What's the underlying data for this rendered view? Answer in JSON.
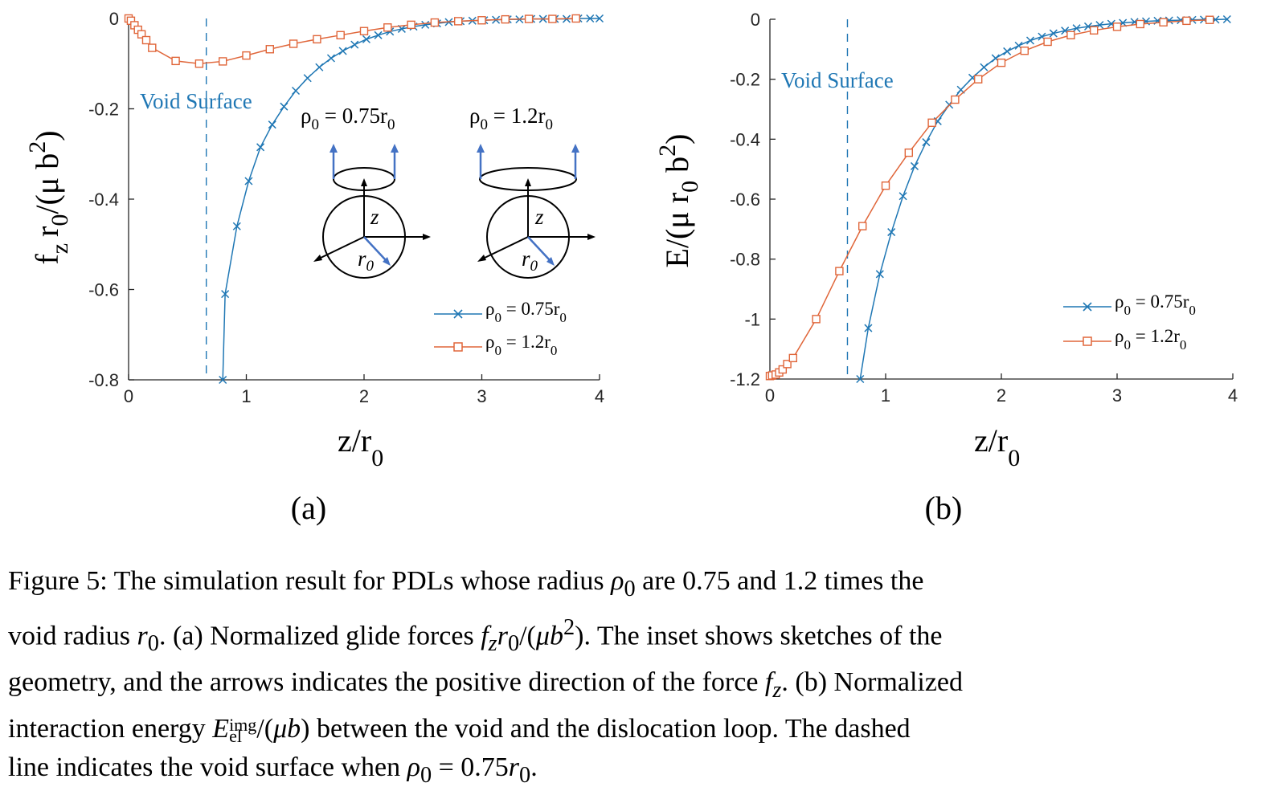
{
  "chart_data": [
    {
      "type": "line",
      "panel_label": "(a)",
      "ylabel": {
        "a": "f",
        "b": "r",
        "c": "/(μ b",
        "d": ")",
        "sub1": "z",
        "sub2": "0",
        "sup": "2"
      },
      "xlabel": {
        "main": "z/r",
        "sub": "0"
      },
      "xlim": [
        0,
        4
      ],
      "ylim": [
        -0.8,
        0
      ],
      "xticks": [
        0,
        1,
        2,
        3,
        4
      ],
      "xtick_labels": [
        "0",
        "1",
        "2",
        "3",
        "4"
      ],
      "yticks": [
        0,
        -0.2,
        -0.4,
        -0.6,
        -0.8
      ],
      "ytick_labels": [
        "0",
        "-0.2",
        "-0.4",
        "-0.6",
        "-0.8"
      ],
      "void_surface": {
        "x": 0.66,
        "label": "Void Surface"
      },
      "legend": "lower-right",
      "series": [
        {
          "name": {
            "greek": "ρ",
            "sub": "0",
            "rest": " = 0.75r",
            "sub2": "0"
          },
          "color": "#1f77b4",
          "marker": "x",
          "x": [
            0.8,
            0.82,
            0.92,
            1.02,
            1.12,
            1.22,
            1.32,
            1.42,
            1.52,
            1.62,
            1.72,
            1.82,
            1.92,
            2.02,
            2.12,
            2.22,
            2.32,
            2.42,
            2.52,
            2.62,
            2.72,
            2.82,
            2.92,
            3.02,
            3.12,
            3.22,
            3.32,
            3.42,
            3.52,
            3.62,
            3.72,
            3.82,
            3.92,
            4.0
          ],
          "y": [
            -0.8,
            -0.61,
            -0.46,
            -0.36,
            -0.285,
            -0.235,
            -0.195,
            -0.16,
            -0.132,
            -0.108,
            -0.088,
            -0.072,
            -0.058,
            -0.046,
            -0.037,
            -0.029,
            -0.023,
            -0.018,
            -0.014,
            -0.011,
            -0.008,
            -0.006,
            -0.005,
            -0.004,
            -0.003,
            -0.002,
            -0.002,
            -0.001,
            -0.001,
            -0.001,
            -0.001,
            0,
            0,
            0
          ]
        },
        {
          "name": {
            "greek": "ρ",
            "sub": "0",
            "rest": " = 1.2r",
            "sub2": "0"
          },
          "color": "#e0663a",
          "marker": "square",
          "x": [
            0,
            0.02,
            0.05,
            0.08,
            0.11,
            0.15,
            0.2,
            0.4,
            0.6,
            0.8,
            1.0,
            1.2,
            1.4,
            1.6,
            1.8,
            2.0,
            2.2,
            2.4,
            2.6,
            2.8,
            3.0,
            3.2,
            3.4,
            3.6,
            3.8
          ],
          "y": [
            0,
            -0.005,
            -0.015,
            -0.025,
            -0.035,
            -0.048,
            -0.065,
            -0.094,
            -0.1,
            -0.095,
            -0.082,
            -0.068,
            -0.056,
            -0.046,
            -0.037,
            -0.028,
            -0.02,
            -0.014,
            -0.009,
            -0.006,
            -0.004,
            -0.002,
            -0.001,
            -0.001,
            0
          ]
        }
      ],
      "inset": {
        "left_title": {
          "greek": "ρ",
          "sub": "0",
          "rest": " = 0.75r",
          "sub2": "0"
        },
        "right_title": {
          "greek": "ρ",
          "sub": "0",
          "rest": " = 1.2r",
          "sub2": "0"
        },
        "z_label": "z",
        "r_label": {
          "main": "r",
          "sub": "0"
        },
        "arrow_color": "#4472c4"
      }
    },
    {
      "type": "line",
      "panel_label": "(b)",
      "ylabel": {
        "a": "E/(μ r",
        "b": " b",
        "c": ")",
        "sub1": "0",
        "sup": "2"
      },
      "xlabel": {
        "main": "z/r",
        "sub": "0"
      },
      "xlim": [
        0,
        4
      ],
      "ylim": [
        -1.2,
        0
      ],
      "xticks": [
        0,
        1,
        2,
        3,
        4
      ],
      "xtick_labels": [
        "0",
        "1",
        "2",
        "3",
        "4"
      ],
      "yticks": [
        0,
        -0.2,
        -0.4,
        -0.6,
        -0.8,
        -1,
        -1.2
      ],
      "ytick_labels": [
        "0",
        "-0.2",
        "-0.4",
        "-0.6",
        "-0.8",
        "-1",
        "-1.2"
      ],
      "void_surface": {
        "x": 0.67,
        "label": "Void Surface"
      },
      "legend": "right",
      "series": [
        {
          "name": {
            "greek": "ρ",
            "sub": "0",
            "rest": " = 0.75r",
            "sub2": "0"
          },
          "color": "#1f77b4",
          "marker": "x",
          "x": [
            0.78,
            0.85,
            0.95,
            1.05,
            1.15,
            1.25,
            1.35,
            1.45,
            1.55,
            1.65,
            1.75,
            1.85,
            1.95,
            2.05,
            2.15,
            2.25,
            2.35,
            2.45,
            2.55,
            2.65,
            2.75,
            2.85,
            2.95,
            3.05,
            3.15,
            3.25,
            3.35,
            3.45,
            3.55,
            3.65,
            3.75,
            3.85,
            3.95
          ],
          "y": [
            -1.2,
            -1.03,
            -0.85,
            -0.71,
            -0.59,
            -0.49,
            -0.41,
            -0.34,
            -0.285,
            -0.235,
            -0.195,
            -0.16,
            -0.13,
            -0.107,
            -0.088,
            -0.071,
            -0.058,
            -0.047,
            -0.038,
            -0.03,
            -0.024,
            -0.019,
            -0.015,
            -0.012,
            -0.009,
            -0.007,
            -0.005,
            -0.004,
            -0.003,
            -0.002,
            -0.001,
            -0.001,
            0
          ]
        },
        {
          "name": {
            "greek": "ρ",
            "sub": "0",
            "rest": " = 1.2r",
            "sub2": "0"
          },
          "color": "#e0663a",
          "marker": "square",
          "x": [
            0,
            0.02,
            0.05,
            0.08,
            0.11,
            0.15,
            0.2,
            0.4,
            0.6,
            0.8,
            1.0,
            1.2,
            1.4,
            1.6,
            1.8,
            2.0,
            2.2,
            2.4,
            2.6,
            2.8,
            3.0,
            3.2,
            3.4,
            3.6,
            3.8
          ],
          "y": [
            -1.19,
            -1.188,
            -1.185,
            -1.178,
            -1.168,
            -1.15,
            -1.13,
            -1.0,
            -0.84,
            -0.69,
            -0.555,
            -0.445,
            -0.345,
            -0.268,
            -0.2,
            -0.145,
            -0.105,
            -0.075,
            -0.053,
            -0.037,
            -0.025,
            -0.016,
            -0.01,
            -0.005,
            -0.002
          ]
        }
      ]
    }
  ],
  "caption": {
    "l1a": "Figure 5:  The simulation result for PDLs whose radius ",
    "rho": "ρ",
    "sub0": "0",
    "l1b": " are 0.75 and 1.2 times the",
    "l2a": "void radius ",
    "r": "r",
    "l2b": ".  (a) Normalized glide forces ",
    "f": "f",
    "z": "z",
    "l2c": "/(",
    "mu": "μb",
    "two": "2",
    "l2d": ").  The inset shows sketches of the",
    "l3a": "geometry, and the arrows indicates the positive direction of the force ",
    "l3b": ".  (b) Normalized",
    "l4a": "interaction energy ",
    "E": "E",
    "img": "img",
    "el": "el",
    "l4b": ") between the void and the dislocation loop.  The dashed",
    "l5a": "line indicates the void surface when ",
    "l5b": " = 0.75",
    "l5c": "."
  }
}
